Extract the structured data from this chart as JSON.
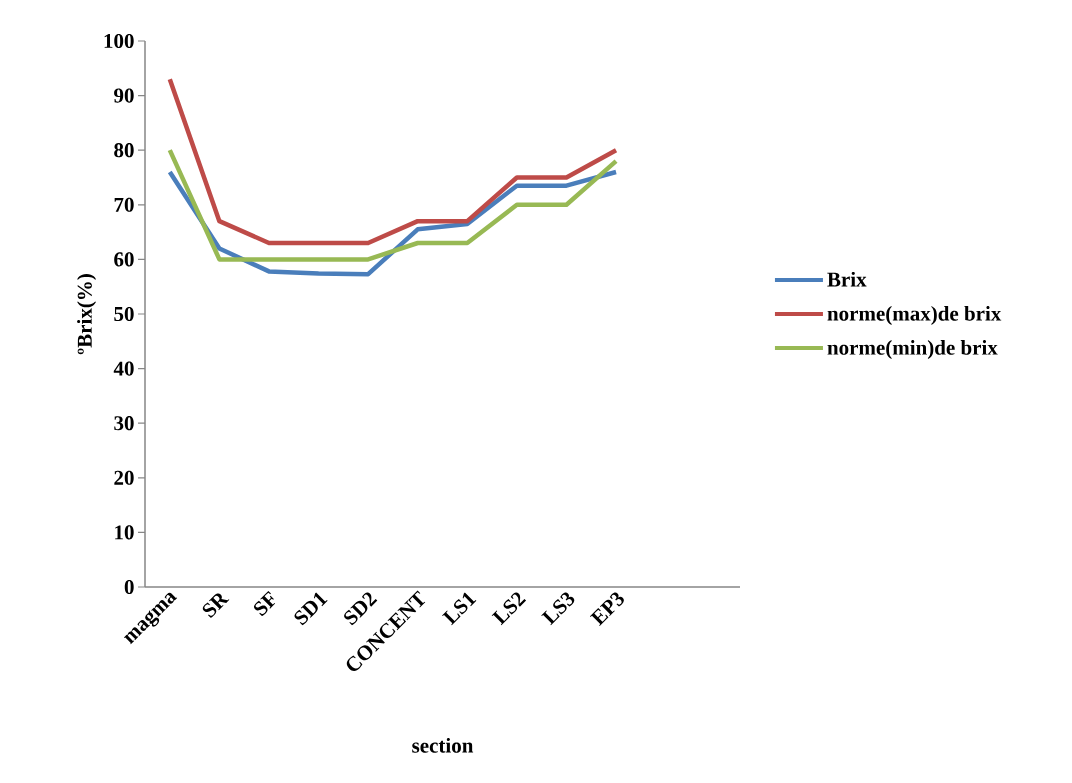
{
  "chart_data": {
    "type": "line",
    "xlabel": "section",
    "ylabel": "ºBrix(%)",
    "categories": [
      "magma",
      "SR",
      "SF",
      "SD1",
      "SD2",
      "CONCENT",
      "LS1",
      "LS2",
      "LS3",
      "EP3",
      null,
      null
    ],
    "series": [
      {
        "name": "Brix",
        "color": "#4a7ebb",
        "values": [
          76,
          62,
          57.8,
          57.4,
          57.3,
          65.5,
          66.5,
          73.5,
          73.5,
          76,
          null,
          null
        ]
      },
      {
        "name": "norme(max)de brix",
        "color": "#be4b48",
        "values": [
          93,
          67,
          63,
          63,
          63,
          67,
          67,
          75,
          75,
          80,
          null,
          null
        ]
      },
      {
        "name": "norme(min)de brix",
        "color": "#98b954",
        "values": [
          80,
          60,
          60,
          60,
          60,
          63,
          63,
          70,
          70,
          78,
          null,
          null
        ]
      }
    ],
    "ylim": [
      0,
      100
    ],
    "yticks": [
      0,
      10,
      20,
      30,
      40,
      50,
      60,
      70,
      80,
      90,
      100
    ],
    "legend": "right",
    "marker": "none",
    "line_style": "solid",
    "grid": false
  }
}
